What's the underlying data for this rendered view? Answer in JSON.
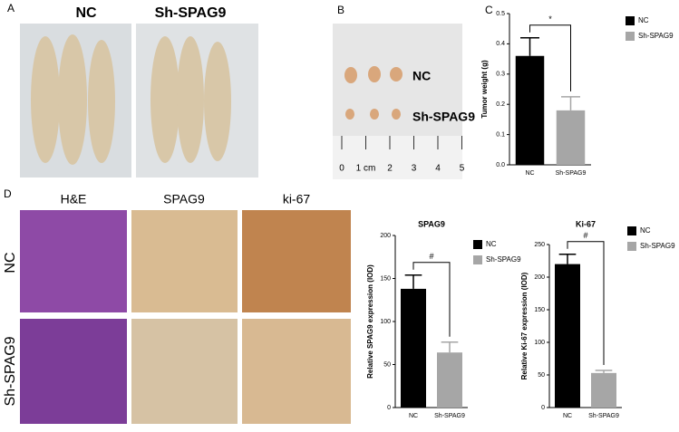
{
  "panels": {
    "a": "A",
    "b": "B",
    "c": "C",
    "d": "D"
  },
  "panel_a": {
    "nc": "NC",
    "sh": "Sh-SPAG9"
  },
  "panel_b": {
    "nc": "NC",
    "sh": "Sh-SPAG9",
    "ruler": [
      "0",
      "1 cm",
      "2",
      "3",
      "4",
      "5"
    ]
  },
  "panel_d": {
    "columns": [
      "H&E",
      "SPAG9",
      "ki-67"
    ],
    "rows": [
      "NC",
      "Sh-SPAG9"
    ]
  },
  "chart_data": [
    {
      "type": "bar",
      "ylabel": "Tumor weight (g)",
      "categories": [
        "NC",
        "Sh-SPAG9"
      ],
      "values": [
        0.36,
        0.18
      ],
      "errors": [
        0.06,
        0.045
      ],
      "colors": [
        "#000000",
        "#a6a6a6"
      ],
      "ylim": [
        0,
        0.5
      ],
      "yticks": [
        {
          "value": 0,
          "label": "0.0"
        },
        0.1,
        0.2,
        0.3,
        0.4,
        0.5
      ],
      "annotation": "*"
    },
    {
      "type": "bar",
      "title": "SPAG9",
      "ylabel": "Relative SPAG9 expression (IOD)",
      "categories": [
        "NC",
        "Sh-SPAG9"
      ],
      "values": [
        138,
        64
      ],
      "errors": [
        16,
        12
      ],
      "colors": [
        "#000000",
        "#a6a6a6"
      ],
      "ylim": [
        0,
        200
      ],
      "yticks": [
        0,
        50,
        100,
        150,
        200
      ],
      "annotation": "#"
    },
    {
      "type": "bar",
      "title": "Ki-67",
      "ylabel": "Relative Ki-67 expression (IOD)",
      "categories": [
        "NC",
        "Sh-SPAG9"
      ],
      "values": [
        220,
        53
      ],
      "errors": [
        15,
        4
      ],
      "colors": [
        "#000000",
        "#a6a6a6"
      ],
      "ylim": [
        0,
        250
      ],
      "yticks": [
        0,
        50,
        100,
        150,
        200,
        250
      ],
      "annotation": "#"
    }
  ]
}
